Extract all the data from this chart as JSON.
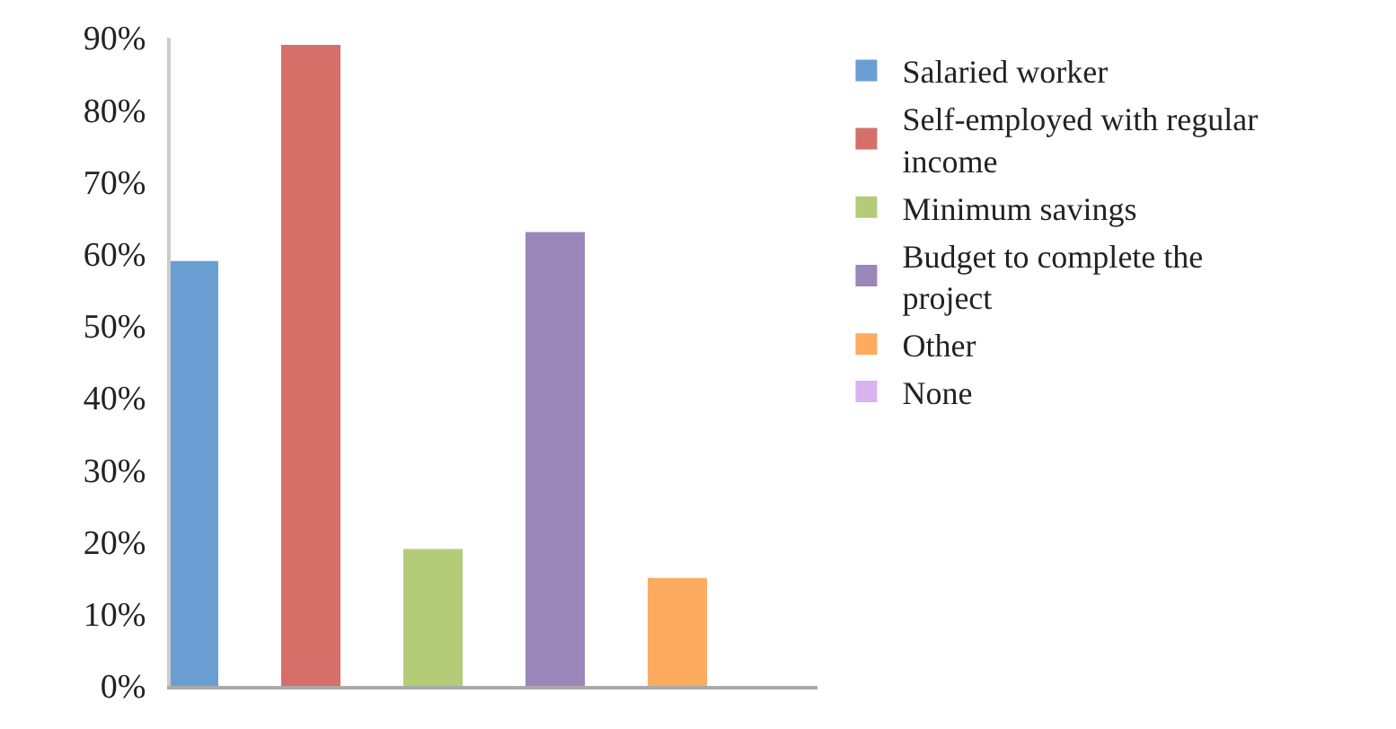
{
  "chart_data": {
    "type": "bar",
    "categories": [
      null,
      null,
      null,
      null,
      null,
      null
    ],
    "series": [
      {
        "name": "Salaried worker",
        "color": "#6a9ed3",
        "values": [
          59,
          null,
          null,
          null,
          null,
          null
        ]
      },
      {
        "name": "Self-employed with regular income",
        "color": "#d76f69",
        "values": [
          null,
          89,
          null,
          null,
          null,
          null
        ]
      },
      {
        "name": "Minimum savings",
        "color": "#b4cc78",
        "values": [
          null,
          null,
          19,
          null,
          null,
          null
        ]
      },
      {
        "name": "Budget to complete the project",
        "color": "#9b86ba",
        "values": [
          null,
          null,
          null,
          63,
          null,
          null
        ]
      },
      {
        "name": "Other",
        "color": "#fdac5f",
        "values": [
          null,
          null,
          null,
          null,
          15,
          null
        ]
      },
      {
        "name": "None",
        "color": "#d9b3f0",
        "values": [
          null,
          null,
          null,
          null,
          null,
          0
        ]
      }
    ],
    "ylim": [
      0,
      90
    ],
    "yticks": [
      {
        "value": 0,
        "label": "0%"
      },
      {
        "value": 10,
        "label": "10%"
      },
      {
        "value": 20,
        "label": "20%"
      },
      {
        "value": 30,
        "label": "30%"
      },
      {
        "value": 40,
        "label": "40%"
      },
      {
        "value": 50,
        "label": "50%"
      },
      {
        "value": 60,
        "label": "60%"
      },
      {
        "value": 70,
        "label": "70%"
      },
      {
        "value": 80,
        "label": "80%"
      },
      {
        "value": 90,
        "label": "90%"
      }
    ],
    "grid": false,
    "legend": "right",
    "tick_labels": "y"
  }
}
